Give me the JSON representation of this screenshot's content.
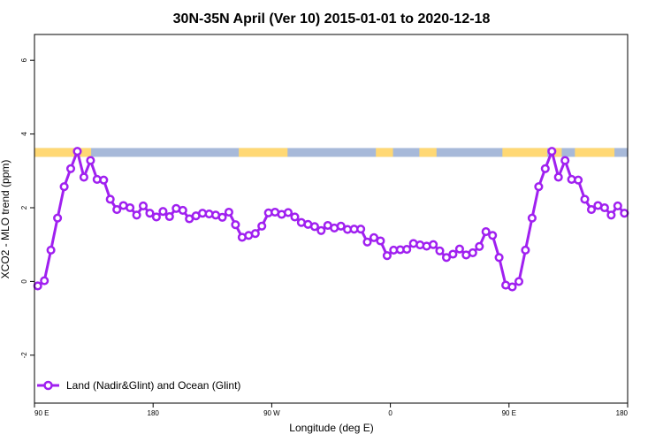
{
  "chart_data": {
    "type": "line",
    "title": "30N-35N April (Ver 10)   2015-01-01 to 2020-12-18",
    "xlabel": "Longitude (deg E)",
    "ylabel": "XCO2 - MLO trend (ppm)",
    "xlim": [
      90,
      540
    ],
    "ylim": [
      -3.3,
      6.7
    ],
    "x_ticks": [
      {
        "value": 90,
        "label": "90 E"
      },
      {
        "value": 180,
        "label": "180"
      },
      {
        "value": 270,
        "label": "90 W"
      },
      {
        "value": 360,
        "label": "0"
      },
      {
        "value": 450,
        "label": "90 E"
      },
      {
        "value": 540,
        "label": "180"
      }
    ],
    "y_ticks": [
      {
        "value": -2,
        "label": "-2"
      },
      {
        "value": 0,
        "label": "0"
      },
      {
        "value": 2,
        "label": "2"
      },
      {
        "value": 4,
        "label": "4"
      },
      {
        "value": 6,
        "label": "6"
      }
    ],
    "grid": false,
    "legend_position": "bottom-left",
    "band": {
      "y_range": [
        3.38,
        3.62
      ],
      "ocean_color": "#a7b9d9",
      "land_color": "#ffd874",
      "land_segments": [
        [
          90,
          133
        ],
        [
          245,
          282
        ],
        [
          349,
          362
        ],
        [
          382,
          395
        ],
        [
          445,
          479
        ],
        [
          484,
          490
        ],
        [
          500,
          530
        ]
      ]
    },
    "series": [
      {
        "name": "Land (Nadir&Glint) and Ocean (Glint)",
        "color": "#a020f0",
        "x": [
          92.5,
          97.5,
          102.5,
          107.5,
          112.5,
          117.5,
          122.5,
          127.5,
          132.5,
          137.5,
          142.5,
          147.5,
          152.5,
          157.5,
          162.5,
          167.5,
          172.5,
          177.5,
          182.5,
          187.5,
          192.5,
          197.5,
          202.5,
          207.5,
          212.5,
          217.5,
          222.5,
          227.5,
          232.5,
          237.5,
          242.5,
          247.5,
          252.5,
          257.5,
          262.5,
          267.5,
          272.5,
          277.5,
          282.5,
          287.5,
          292.5,
          297.5,
          302.5,
          307.5,
          312.5,
          317.5,
          322.5,
          327.5,
          332.5,
          337.5,
          342.5,
          347.5,
          352.5,
          357.5,
          362.5,
          367.5,
          372.5,
          377.5,
          382.5,
          387.5,
          392.5,
          397.5,
          402.5,
          407.5,
          412.5,
          417.5,
          422.5,
          427.5,
          432.5,
          437.5,
          442.5,
          447.5,
          452.5,
          457.5,
          462.5,
          467.5,
          472.5,
          477.5,
          482.5,
          487.5,
          492.5,
          497.5,
          502.5,
          507.5,
          512.5,
          517.5,
          522.5,
          527.5,
          532.5,
          537.5
        ],
        "y": [
          -0.12,
          0.02,
          0.85,
          1.72,
          2.57,
          3.06,
          3.53,
          2.83,
          3.28,
          2.77,
          2.75,
          2.23,
          1.95,
          2.06,
          2.0,
          1.8,
          2.05,
          1.85,
          1.75,
          1.9,
          1.76,
          1.98,
          1.93,
          1.7,
          1.78,
          1.85,
          1.83,
          1.8,
          1.74,
          1.88,
          1.54,
          1.2,
          1.25,
          1.3,
          1.5,
          1.86,
          1.88,
          1.82,
          1.87,
          1.75,
          1.6,
          1.55,
          1.49,
          1.38,
          1.52,
          1.45,
          1.5,
          1.41,
          1.42,
          1.42,
          1.07,
          1.19,
          1.1,
          0.7,
          0.85,
          0.86,
          0.87,
          1.03,
          0.99,
          0.96,
          1.0,
          0.83,
          0.65,
          0.74,
          0.88,
          0.72,
          0.78,
          0.95,
          1.35,
          1.25,
          0.65,
          -0.1,
          -0.15,
          0.0,
          0.85,
          1.72,
          2.57,
          3.06,
          3.53,
          2.83,
          3.28,
          2.77,
          2.75,
          2.23,
          1.95,
          2.06,
          2.0,
          1.8,
          2.05,
          1.85
        ]
      }
    ]
  }
}
